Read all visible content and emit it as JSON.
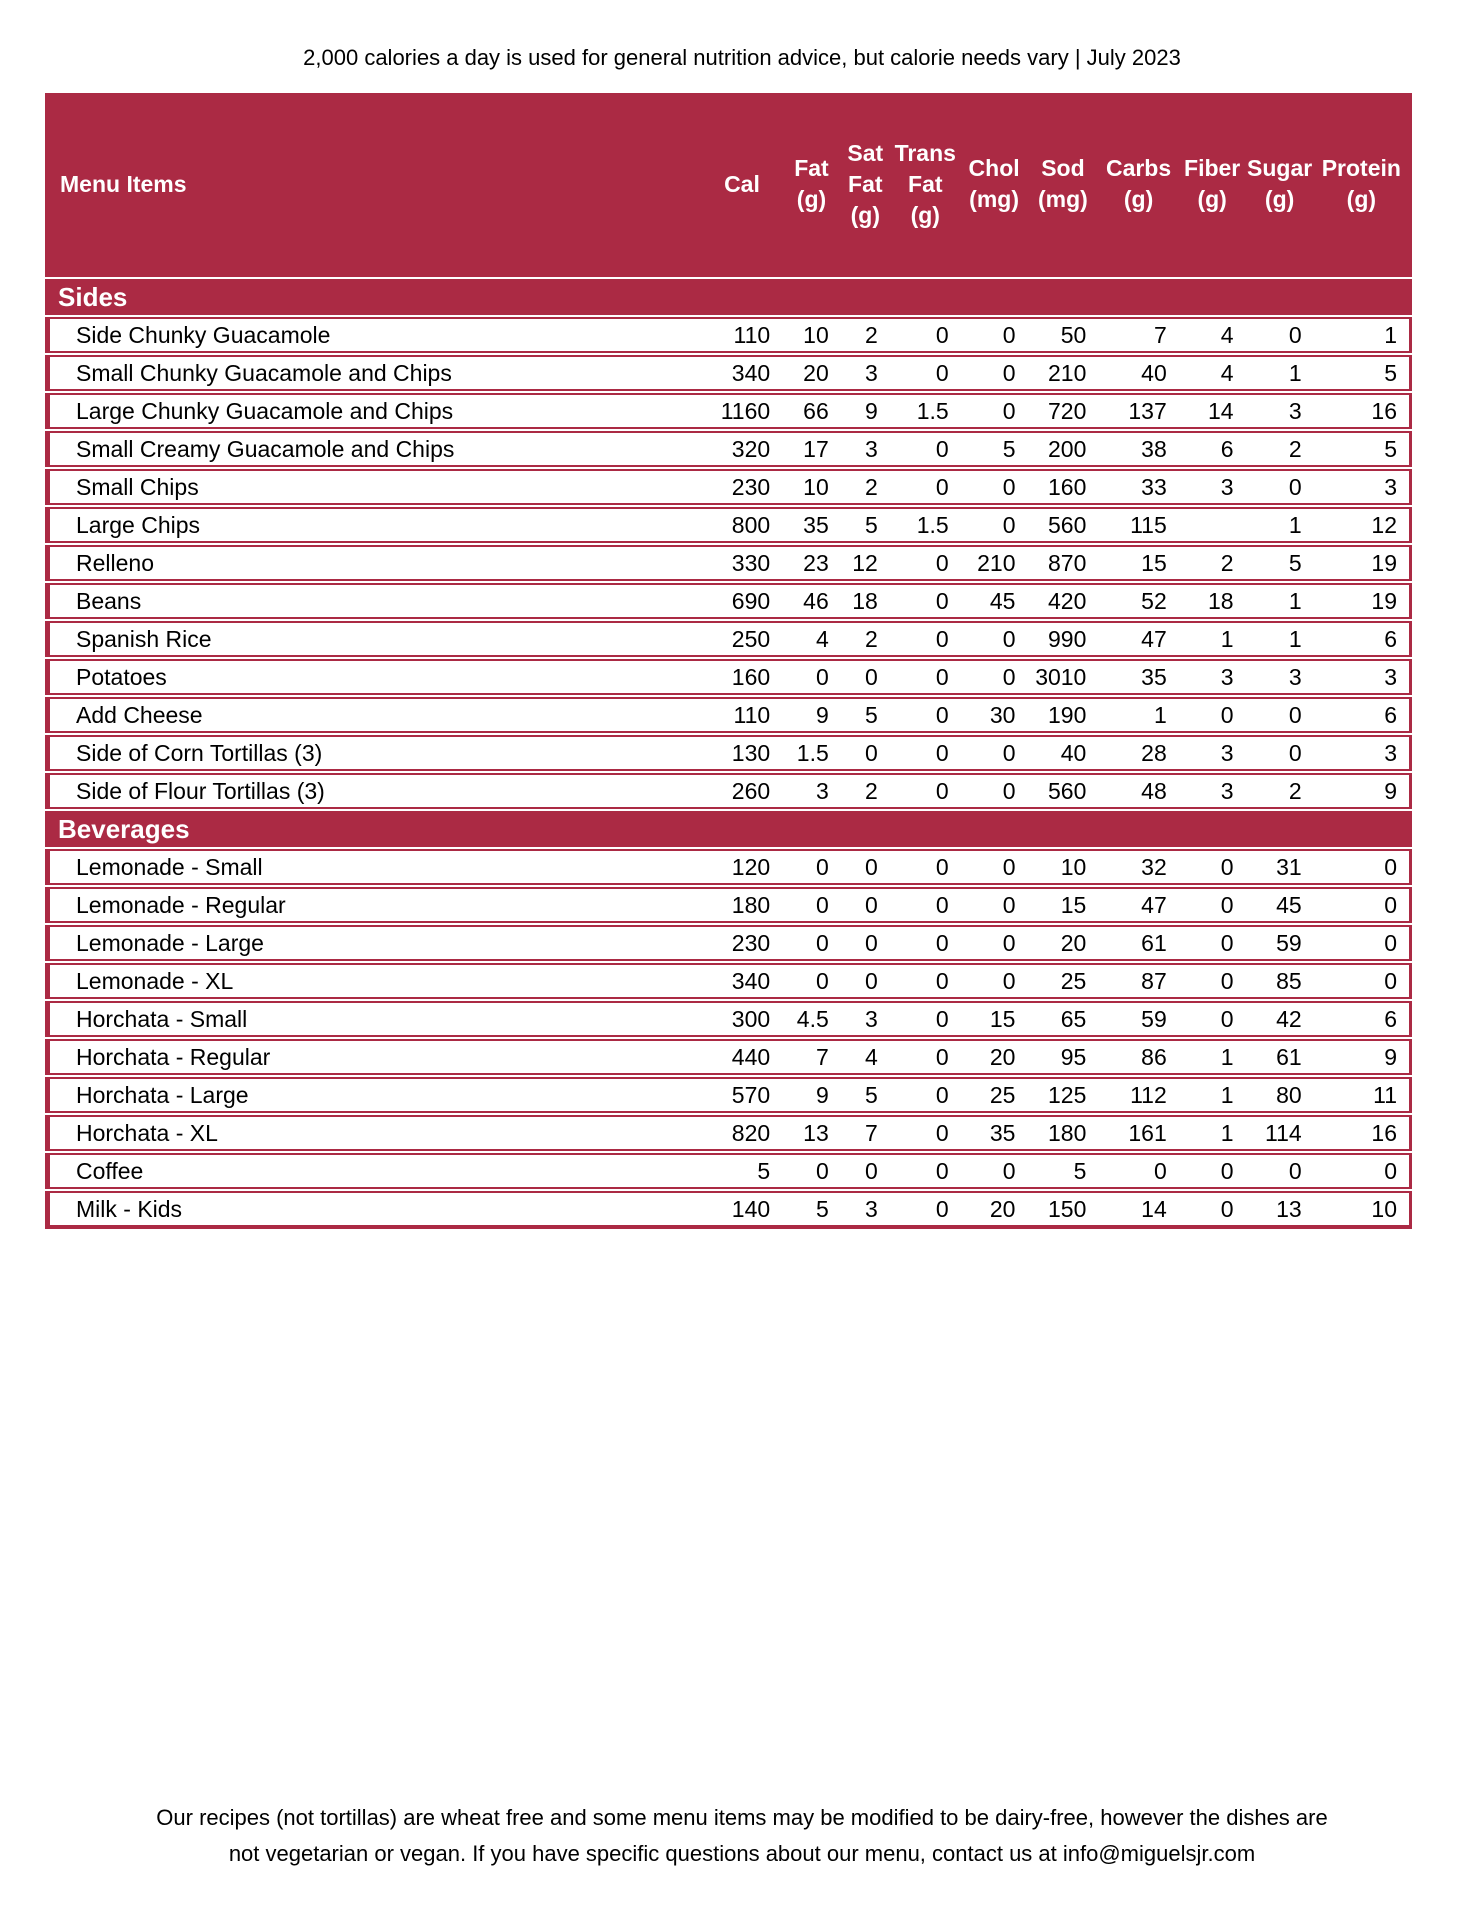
{
  "page": {
    "top_note": "2,000 calories a day is used for general nutrition advice, but calorie needs vary | July 2023",
    "footer": {
      "line1": "Our recipes (not tortillas) are wheat free and some menu items may be modified to be dairy-free, however the dishes are",
      "line2": "not vegetarian or vegan. If you have specific questions about our menu, contact us at info@miguelsjr.com"
    }
  },
  "colors": {
    "accent_maroon": "#AB2A44",
    "header_text": "#FFFFFF",
    "body_text": "#000000",
    "row_background": "#FFFFFF"
  },
  "table": {
    "columns": [
      {
        "id": "menu-items",
        "label": "Menu Items",
        "lines": [
          "Menu Items"
        ]
      },
      {
        "id": "cal",
        "label": "Cal",
        "lines": [
          "Cal"
        ]
      },
      {
        "id": "fat-g",
        "label": "Fat (g)",
        "lines": [
          "Fat",
          "(g)"
        ]
      },
      {
        "id": "sat-fat-g",
        "label": "Sat Fat (g)",
        "lines": [
          "Sat",
          "Fat",
          "(g)"
        ]
      },
      {
        "id": "trans-fat-g",
        "label": "Trans Fat (g)",
        "lines": [
          "Trans",
          "Fat",
          "(g)"
        ]
      },
      {
        "id": "chol-mg",
        "label": "Chol (mg)",
        "lines": [
          "Chol",
          "(mg)"
        ]
      },
      {
        "id": "sod-mg",
        "label": "Sod (mg)",
        "lines": [
          "Sod",
          "(mg)"
        ]
      },
      {
        "id": "carbs-g",
        "label": "Carbs (g)",
        "lines": [
          "Carbs",
          "(g)"
        ]
      },
      {
        "id": "fiber-g",
        "label": "Fiber (g)",
        "lines": [
          "Fiber",
          "(g)"
        ]
      },
      {
        "id": "sugar-g",
        "label": "Sugar (g)",
        "lines": [
          "Sugar",
          "(g)"
        ]
      },
      {
        "id": "protein-g",
        "label": "Protein (g)",
        "lines": [
          "Protein",
          "(g)"
        ]
      }
    ],
    "sections": [
      {
        "title": "Sides",
        "rows": [
          {
            "name": "Side Chunky Guacamole",
            "values": [
              "110",
              "10",
              "2",
              "0",
              "0",
              "50",
              "7",
              "4",
              "0",
              "1"
            ]
          },
          {
            "name": "Small Chunky Guacamole and Chips",
            "values": [
              "340",
              "20",
              "3",
              "0",
              "0",
              "210",
              "40",
              "4",
              "1",
              "5"
            ]
          },
          {
            "name": "Large Chunky Guacamole and Chips",
            "values": [
              "1160",
              "66",
              "9",
              "1.5",
              "0",
              "720",
              "137",
              "14",
              "3",
              "16"
            ]
          },
          {
            "name": "Small Creamy Guacamole and Chips",
            "values": [
              "320",
              "17",
              "3",
              "0",
              "5",
              "200",
              "38",
              "6",
              "2",
              "5"
            ]
          },
          {
            "name": "Small Chips",
            "values": [
              "230",
              "10",
              "2",
              "0",
              "0",
              "160",
              "33",
              "3",
              "0",
              "3"
            ]
          },
          {
            "name": "Large Chips",
            "values": [
              "800",
              "35",
              "5",
              "1.5",
              "0",
              "560",
              "115",
              "",
              "1",
              "12"
            ]
          },
          {
            "name": "Relleno",
            "values": [
              "330",
              "23",
              "12",
              "0",
              "210",
              "870",
              "15",
              "2",
              "5",
              "19"
            ]
          },
          {
            "name": "Beans",
            "values": [
              "690",
              "46",
              "18",
              "0",
              "45",
              "420",
              "52",
              "18",
              "1",
              "19"
            ]
          },
          {
            "name": "Spanish Rice",
            "values": [
              "250",
              "4",
              "2",
              "0",
              "0",
              "990",
              "47",
              "1",
              "1",
              "6"
            ]
          },
          {
            "name": "Potatoes",
            "values": [
              "160",
              "0",
              "0",
              "0",
              "0",
              "3010",
              "35",
              "3",
              "3",
              "3"
            ]
          },
          {
            "name": "Add Cheese",
            "values": [
              "110",
              "9",
              "5",
              "0",
              "30",
              "190",
              "1",
              "0",
              "0",
              "6"
            ]
          },
          {
            "name": "Side of Corn Tortillas (3)",
            "values": [
              "130",
              "1.5",
              "0",
              "0",
              "0",
              "40",
              "28",
              "3",
              "0",
              "3"
            ]
          },
          {
            "name": "Side of Flour Tortillas (3)",
            "values": [
              "260",
              "3",
              "2",
              "0",
              "0",
              "560",
              "48",
              "3",
              "2",
              "9"
            ]
          }
        ]
      },
      {
        "title": "Beverages",
        "rows": [
          {
            "name": "Lemonade - Small",
            "values": [
              "120",
              "0",
              "0",
              "0",
              "0",
              "10",
              "32",
              "0",
              "31",
              "0"
            ]
          },
          {
            "name": "Lemonade - Regular",
            "values": [
              "180",
              "0",
              "0",
              "0",
              "0",
              "15",
              "47",
              "0",
              "45",
              "0"
            ]
          },
          {
            "name": "Lemonade - Large",
            "values": [
              "230",
              "0",
              "0",
              "0",
              "0",
              "20",
              "61",
              "0",
              "59",
              "0"
            ]
          },
          {
            "name": "Lemonade - XL",
            "values": [
              "340",
              "0",
              "0",
              "0",
              "0",
              "25",
              "87",
              "0",
              "85",
              "0"
            ]
          },
          {
            "name": "Horchata - Small",
            "values": [
              "300",
              "4.5",
              "3",
              "0",
              "15",
              "65",
              "59",
              "0",
              "42",
              "6"
            ]
          },
          {
            "name": "Horchata - Regular",
            "values": [
              "440",
              "7",
              "4",
              "0",
              "20",
              "95",
              "86",
              "1",
              "61",
              "9"
            ]
          },
          {
            "name": "Horchata - Large",
            "values": [
              "570",
              "9",
              "5",
              "0",
              "25",
              "125",
              "112",
              "1",
              "80",
              "11"
            ]
          },
          {
            "name": "Horchata - XL",
            "values": [
              "820",
              "13",
              "7",
              "0",
              "35",
              "180",
              "161",
              "1",
              "114",
              "16"
            ]
          },
          {
            "name": "Coffee",
            "values": [
              "5",
              "0",
              "0",
              "0",
              "0",
              "5",
              "0",
              "0",
              "0",
              "0"
            ]
          },
          {
            "name": "Milk - Kids",
            "values": [
              "140",
              "5",
              "3",
              "0",
              "20",
              "150",
              "14",
              "0",
              "13",
              "10"
            ]
          }
        ]
      }
    ]
  }
}
